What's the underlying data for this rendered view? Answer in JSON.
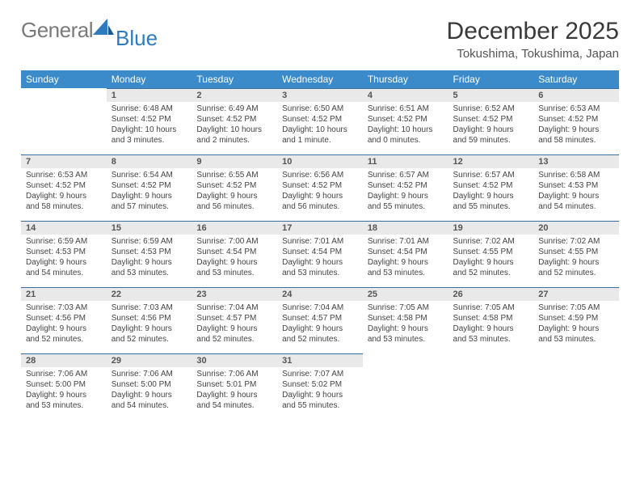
{
  "brand": {
    "part1": "General",
    "part2": "Blue"
  },
  "title": "December 2025",
  "location": "Tokushima, Tokushima, Japan",
  "weekdays": [
    "Sunday",
    "Monday",
    "Tuesday",
    "Wednesday",
    "Thursday",
    "Friday",
    "Saturday"
  ],
  "colors": {
    "header_bg": "#3b8bca",
    "header_text": "#ffffff",
    "dayhead_bg": "#e9e9e9",
    "dayhead_border": "#3b6fa0",
    "text": "#444444"
  },
  "weeks": [
    [
      {
        "n": "",
        "sunrise": "",
        "sunset": "",
        "daylight": ""
      },
      {
        "n": "1",
        "sunrise": "Sunrise: 6:48 AM",
        "sunset": "Sunset: 4:52 PM",
        "daylight": "Daylight: 10 hours and 3 minutes."
      },
      {
        "n": "2",
        "sunrise": "Sunrise: 6:49 AM",
        "sunset": "Sunset: 4:52 PM",
        "daylight": "Daylight: 10 hours and 2 minutes."
      },
      {
        "n": "3",
        "sunrise": "Sunrise: 6:50 AM",
        "sunset": "Sunset: 4:52 PM",
        "daylight": "Daylight: 10 hours and 1 minute."
      },
      {
        "n": "4",
        "sunrise": "Sunrise: 6:51 AM",
        "sunset": "Sunset: 4:52 PM",
        "daylight": "Daylight: 10 hours and 0 minutes."
      },
      {
        "n": "5",
        "sunrise": "Sunrise: 6:52 AM",
        "sunset": "Sunset: 4:52 PM",
        "daylight": "Daylight: 9 hours and 59 minutes."
      },
      {
        "n": "6",
        "sunrise": "Sunrise: 6:53 AM",
        "sunset": "Sunset: 4:52 PM",
        "daylight": "Daylight: 9 hours and 58 minutes."
      }
    ],
    [
      {
        "n": "7",
        "sunrise": "Sunrise: 6:53 AM",
        "sunset": "Sunset: 4:52 PM",
        "daylight": "Daylight: 9 hours and 58 minutes."
      },
      {
        "n": "8",
        "sunrise": "Sunrise: 6:54 AM",
        "sunset": "Sunset: 4:52 PM",
        "daylight": "Daylight: 9 hours and 57 minutes."
      },
      {
        "n": "9",
        "sunrise": "Sunrise: 6:55 AM",
        "sunset": "Sunset: 4:52 PM",
        "daylight": "Daylight: 9 hours and 56 minutes."
      },
      {
        "n": "10",
        "sunrise": "Sunrise: 6:56 AM",
        "sunset": "Sunset: 4:52 PM",
        "daylight": "Daylight: 9 hours and 56 minutes."
      },
      {
        "n": "11",
        "sunrise": "Sunrise: 6:57 AM",
        "sunset": "Sunset: 4:52 PM",
        "daylight": "Daylight: 9 hours and 55 minutes."
      },
      {
        "n": "12",
        "sunrise": "Sunrise: 6:57 AM",
        "sunset": "Sunset: 4:52 PM",
        "daylight": "Daylight: 9 hours and 55 minutes."
      },
      {
        "n": "13",
        "sunrise": "Sunrise: 6:58 AM",
        "sunset": "Sunset: 4:53 PM",
        "daylight": "Daylight: 9 hours and 54 minutes."
      }
    ],
    [
      {
        "n": "14",
        "sunrise": "Sunrise: 6:59 AM",
        "sunset": "Sunset: 4:53 PM",
        "daylight": "Daylight: 9 hours and 54 minutes."
      },
      {
        "n": "15",
        "sunrise": "Sunrise: 6:59 AM",
        "sunset": "Sunset: 4:53 PM",
        "daylight": "Daylight: 9 hours and 53 minutes."
      },
      {
        "n": "16",
        "sunrise": "Sunrise: 7:00 AM",
        "sunset": "Sunset: 4:54 PM",
        "daylight": "Daylight: 9 hours and 53 minutes."
      },
      {
        "n": "17",
        "sunrise": "Sunrise: 7:01 AM",
        "sunset": "Sunset: 4:54 PM",
        "daylight": "Daylight: 9 hours and 53 minutes."
      },
      {
        "n": "18",
        "sunrise": "Sunrise: 7:01 AM",
        "sunset": "Sunset: 4:54 PM",
        "daylight": "Daylight: 9 hours and 53 minutes."
      },
      {
        "n": "19",
        "sunrise": "Sunrise: 7:02 AM",
        "sunset": "Sunset: 4:55 PM",
        "daylight": "Daylight: 9 hours and 52 minutes."
      },
      {
        "n": "20",
        "sunrise": "Sunrise: 7:02 AM",
        "sunset": "Sunset: 4:55 PM",
        "daylight": "Daylight: 9 hours and 52 minutes."
      }
    ],
    [
      {
        "n": "21",
        "sunrise": "Sunrise: 7:03 AM",
        "sunset": "Sunset: 4:56 PM",
        "daylight": "Daylight: 9 hours and 52 minutes."
      },
      {
        "n": "22",
        "sunrise": "Sunrise: 7:03 AM",
        "sunset": "Sunset: 4:56 PM",
        "daylight": "Daylight: 9 hours and 52 minutes."
      },
      {
        "n": "23",
        "sunrise": "Sunrise: 7:04 AM",
        "sunset": "Sunset: 4:57 PM",
        "daylight": "Daylight: 9 hours and 52 minutes."
      },
      {
        "n": "24",
        "sunrise": "Sunrise: 7:04 AM",
        "sunset": "Sunset: 4:57 PM",
        "daylight": "Daylight: 9 hours and 52 minutes."
      },
      {
        "n": "25",
        "sunrise": "Sunrise: 7:05 AM",
        "sunset": "Sunset: 4:58 PM",
        "daylight": "Daylight: 9 hours and 53 minutes."
      },
      {
        "n": "26",
        "sunrise": "Sunrise: 7:05 AM",
        "sunset": "Sunset: 4:58 PM",
        "daylight": "Daylight: 9 hours and 53 minutes."
      },
      {
        "n": "27",
        "sunrise": "Sunrise: 7:05 AM",
        "sunset": "Sunset: 4:59 PM",
        "daylight": "Daylight: 9 hours and 53 minutes."
      }
    ],
    [
      {
        "n": "28",
        "sunrise": "Sunrise: 7:06 AM",
        "sunset": "Sunset: 5:00 PM",
        "daylight": "Daylight: 9 hours and 53 minutes."
      },
      {
        "n": "29",
        "sunrise": "Sunrise: 7:06 AM",
        "sunset": "Sunset: 5:00 PM",
        "daylight": "Daylight: 9 hours and 54 minutes."
      },
      {
        "n": "30",
        "sunrise": "Sunrise: 7:06 AM",
        "sunset": "Sunset: 5:01 PM",
        "daylight": "Daylight: 9 hours and 54 minutes."
      },
      {
        "n": "31",
        "sunrise": "Sunrise: 7:07 AM",
        "sunset": "Sunset: 5:02 PM",
        "daylight": "Daylight: 9 hours and 55 minutes."
      },
      {
        "n": "",
        "sunrise": "",
        "sunset": "",
        "daylight": ""
      },
      {
        "n": "",
        "sunrise": "",
        "sunset": "",
        "daylight": ""
      },
      {
        "n": "",
        "sunrise": "",
        "sunset": "",
        "daylight": ""
      }
    ]
  ]
}
